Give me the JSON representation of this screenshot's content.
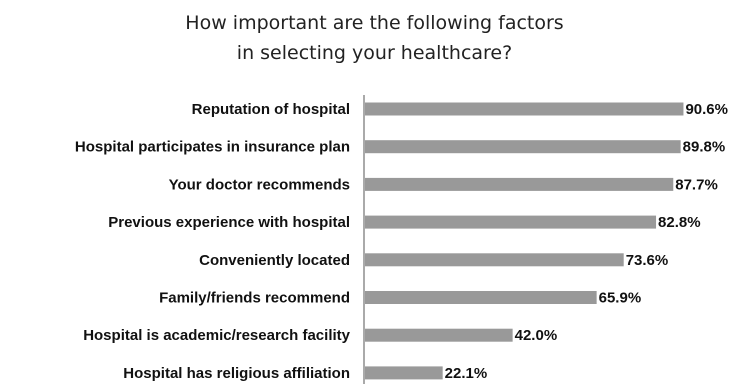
{
  "chart_data": {
    "type": "bar",
    "orientation": "horizontal",
    "title_lines": [
      "How important are the following factors",
      "in selecting your healthcare?"
    ],
    "categories": [
      "Reputation of hospital",
      "Hospital participates in insurance plan",
      "Your doctor recommends",
      "Previous experience with hospital",
      "Conveniently located",
      "Family/friends recommend",
      "Hospital is academic/research facility",
      "Hospital has religious affiliation"
    ],
    "values": [
      90.6,
      89.8,
      87.7,
      82.8,
      73.6,
      65.9,
      42.0,
      22.1
    ],
    "value_labels": [
      "90.6%",
      "89.8%",
      "87.7%",
      "82.8%",
      "73.6%",
      "65.9%",
      "42.0%",
      "22.1%"
    ],
    "xlim": [
      0,
      100
    ],
    "xlabel": "",
    "ylabel": "",
    "grid": false,
    "legend": "none",
    "bar_color": "#999999"
  }
}
